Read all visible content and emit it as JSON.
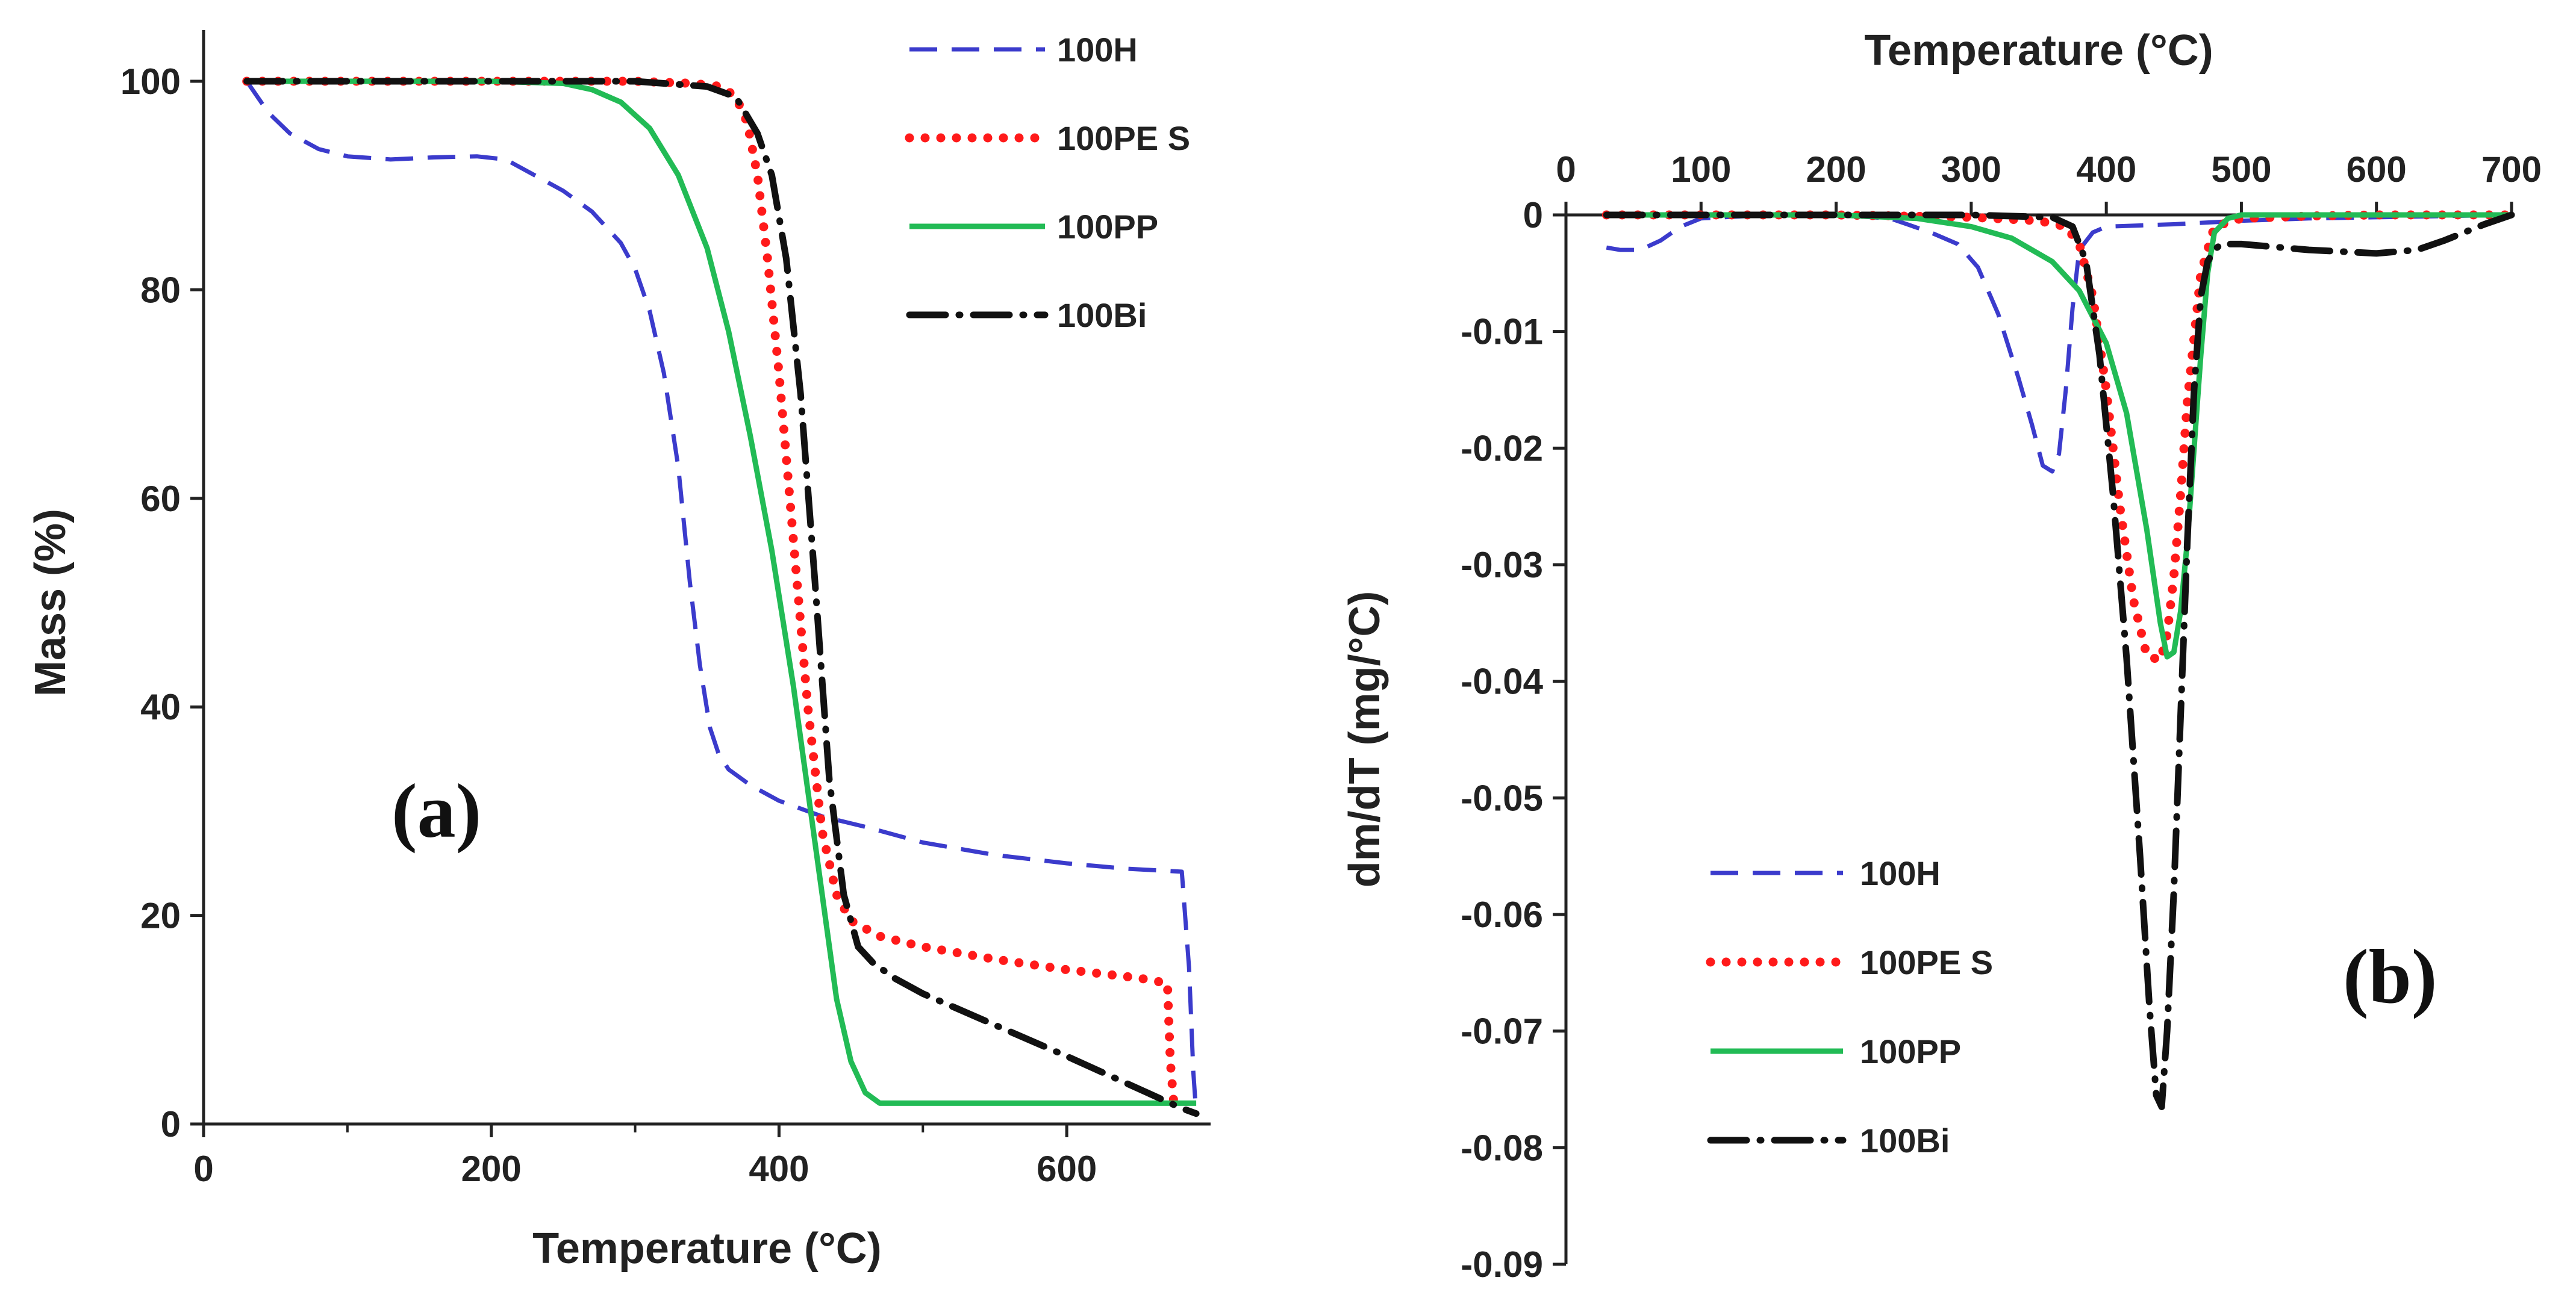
{
  "chart_data": [
    {
      "type": "line",
      "panel_label": "(a)",
      "xlabel": "Temperature (°C)",
      "ylabel": "Mass (%)",
      "xlim": [
        0,
        700
      ],
      "ylim": [
        0,
        100
      ],
      "xticks": [
        "0",
        "200",
        "400",
        "600"
      ],
      "yticks": [
        "0",
        "20",
        "40",
        "60",
        "80",
        "100"
      ],
      "legend_position": "top-right",
      "series": [
        {
          "name": "100H",
          "color": "#3b3bcc",
          "style": "dashed",
          "x": [
            30,
            45,
            60,
            80,
            100,
            130,
            160,
            190,
            210,
            230,
            250,
            270,
            290,
            300,
            310,
            320,
            330,
            338,
            345,
            352,
            358,
            365,
            380,
            400,
            430,
            460,
            500,
            550,
            600,
            640,
            680,
            685,
            688,
            690
          ],
          "y": [
            100,
            97,
            95,
            93.5,
            92.8,
            92.5,
            92.7,
            92.8,
            92.5,
            91,
            89.5,
            87.5,
            84.5,
            82,
            78,
            72,
            63,
            52,
            44,
            38,
            35.5,
            34,
            32.5,
            31,
            29.5,
            28.5,
            27,
            25.8,
            25,
            24.5,
            24.2,
            15,
            5,
            1
          ]
        },
        {
          "name": "100PE S",
          "color": "#ff1a1a",
          "style": "dotted",
          "x": [
            30,
            100,
            200,
            300,
            340,
            360,
            370,
            378,
            385,
            392,
            400,
            410,
            420,
            430,
            440,
            450,
            470,
            500,
            550,
            600,
            650,
            670,
            672,
            675
          ],
          "y": [
            100,
            100,
            100,
            100,
            99.8,
            99.5,
            98.5,
            96,
            91,
            83,
            72,
            56,
            40,
            28,
            22,
            19.5,
            18,
            17,
            15.8,
            14.8,
            14,
            13.5,
            6,
            1
          ]
        },
        {
          "name": "100PP",
          "color": "#22bb55",
          "style": "solid",
          "x": [
            30,
            100,
            200,
            250,
            270,
            290,
            310,
            330,
            350,
            365,
            380,
            395,
            410,
            420,
            430,
            440,
            450,
            460,
            470,
            500,
            600,
            690
          ],
          "y": [
            100,
            100,
            100,
            99.8,
            99.2,
            98,
            95.5,
            91,
            84,
            76,
            66,
            55,
            42,
            32,
            22,
            12,
            6,
            3,
            2,
            2,
            2,
            2
          ]
        },
        {
          "name": "100Bi",
          "color": "#111111",
          "style": "dashdot",
          "x": [
            30,
            100,
            200,
            300,
            350,
            370,
            385,
            395,
            405,
            415,
            425,
            435,
            445,
            455,
            465,
            480,
            500,
            550,
            600,
            640,
            680,
            690
          ],
          "y": [
            100,
            100,
            100,
            100,
            99.5,
            98.5,
            95,
            91,
            83,
            70,
            52,
            33,
            22,
            17,
            15.5,
            14,
            12.5,
            9.5,
            6.5,
            4,
            1.5,
            1
          ]
        }
      ]
    },
    {
      "type": "line",
      "panel_label": "(b)",
      "xlabel": "Temperature (°C)",
      "ylabel": "dm/dT (mg/°C)",
      "xlim": [
        0,
        700
      ],
      "ylim": [
        -0.09,
        0
      ],
      "x_axis_position": "top",
      "xticks": [
        "0",
        "100",
        "200",
        "300",
        "400",
        "500",
        "600",
        "700"
      ],
      "yticks": [
        "0",
        "-0.01",
        "-0.02",
        "-0.03",
        "-0.04",
        "-0.05",
        "-0.06",
        "-0.07",
        "-0.08",
        "-0.09"
      ],
      "legend_position": "bottom-left",
      "series": [
        {
          "name": "100H",
          "color": "#3b3bcc",
          "style": "dashed",
          "x": [
            30,
            40,
            55,
            70,
            85,
            100,
            150,
            200,
            240,
            270,
            290,
            305,
            320,
            335,
            345,
            353,
            360,
            365,
            370,
            375,
            380,
            390,
            400,
            450,
            500,
            550,
            600,
            650,
            700
          ],
          "y": [
            -0.0028,
            -0.003,
            -0.003,
            -0.0022,
            -0.001,
            -0.0003,
            0,
            0,
            -0.0003,
            -0.0015,
            -0.0025,
            -0.0045,
            -0.0085,
            -0.014,
            -0.018,
            -0.0215,
            -0.022,
            -0.0205,
            -0.015,
            -0.008,
            -0.003,
            -0.0015,
            -0.001,
            -0.0008,
            -0.0005,
            -0.0003,
            -0.0002,
            -0.0001,
            0
          ]
        },
        {
          "name": "100PE S",
          "color": "#ff1a1a",
          "style": "dotted",
          "x": [
            30,
            100,
            200,
            300,
            350,
            370,
            380,
            390,
            400,
            410,
            420,
            430,
            440,
            445,
            450,
            455,
            460,
            470,
            480,
            500,
            550,
            600,
            650,
            700
          ],
          "y": [
            0,
            0,
            0,
            -0.0002,
            -0.0005,
            -0.001,
            -0.0025,
            -0.007,
            -0.015,
            -0.025,
            -0.033,
            -0.0378,
            -0.0382,
            -0.036,
            -0.031,
            -0.024,
            -0.016,
            -0.005,
            -0.001,
            -0.0003,
            -0.0001,
            0,
            0,
            0
          ]
        },
        {
          "name": "100PP",
          "color": "#22bb55",
          "style": "solid",
          "x": [
            30,
            100,
            200,
            260,
            300,
            330,
            360,
            380,
            400,
            415,
            430,
            440,
            445,
            450,
            455,
            460,
            465,
            470,
            475,
            480,
            490,
            500,
            600,
            700
          ],
          "y": [
            0,
            0,
            0,
            -0.0003,
            -0.001,
            -0.002,
            -0.004,
            -0.0065,
            -0.011,
            -0.017,
            -0.027,
            -0.035,
            -0.0379,
            -0.0375,
            -0.034,
            -0.028,
            -0.02,
            -0.012,
            -0.005,
            -0.0015,
            -0.0003,
            0,
            0,
            0
          ]
        },
        {
          "name": "100Bi",
          "color": "#111111",
          "style": "dashdot",
          "x": [
            30,
            100,
            200,
            300,
            360,
            375,
            385,
            395,
            405,
            415,
            425,
            432,
            437,
            441,
            445,
            450,
            455,
            460,
            465,
            470,
            475,
            480,
            485,
            490,
            500,
            550,
            600,
            630,
            650,
            680,
            700
          ],
          "y": [
            0,
            0,
            0,
            0,
            -0.0002,
            -0.001,
            -0.004,
            -0.012,
            -0.024,
            -0.038,
            -0.055,
            -0.068,
            -0.0755,
            -0.0765,
            -0.07,
            -0.058,
            -0.043,
            -0.028,
            -0.015,
            -0.007,
            -0.004,
            -0.003,
            -0.0025,
            -0.0025,
            -0.0025,
            -0.003,
            -0.0033,
            -0.003,
            -0.0022,
            -0.0008,
            0
          ]
        }
      ]
    }
  ]
}
